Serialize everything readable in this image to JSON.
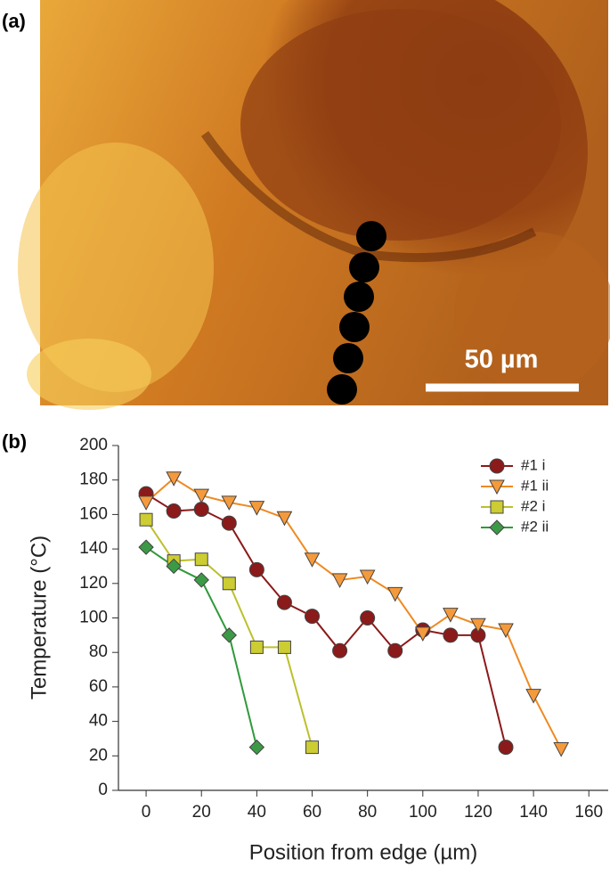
{
  "panel_a": {
    "label": "(a)",
    "scale_bar": "50 µm"
  },
  "panel_b": {
    "label": "(b)"
  },
  "chart_data": {
    "type": "line",
    "x_label": "Position from edge (µm)",
    "y_label": "Temperature (°C)",
    "xlim": [
      -10,
      167
    ],
    "xticks": [
      0,
      20,
      40,
      60,
      80,
      100,
      120,
      140,
      160
    ],
    "ylim": [
      0,
      200
    ],
    "yticks": [
      0,
      20,
      40,
      60,
      80,
      100,
      120,
      140,
      160,
      180,
      200
    ],
    "legend": "upper right",
    "series": [
      {
        "name": "#1 i",
        "color": "#8b1a1a",
        "line_color": "#8b1a1a",
        "marker": "circle",
        "x": [
          0,
          10,
          20,
          30,
          40,
          50,
          60,
          70,
          80,
          90,
          100,
          110,
          120,
          130
        ],
        "values": [
          172,
          162,
          163,
          155,
          128,
          109,
          101,
          81,
          100,
          81,
          93,
          90,
          90,
          25
        ]
      },
      {
        "name": "#1 ii",
        "color": "#f59a3c",
        "line_color": "#ee8a22",
        "marker": "triangle-down",
        "x": [
          0,
          10,
          20,
          30,
          40,
          50,
          60,
          70,
          80,
          90,
          100,
          110,
          120,
          130,
          140,
          150
        ],
        "values": [
          167,
          181,
          171,
          167,
          164,
          158,
          134,
          122,
          124,
          114,
          91,
          102,
          96,
          93,
          55,
          24
        ]
      },
      {
        "name": "#2 i",
        "color": "#cccc33",
        "line_color": "#bcc02c",
        "marker": "square",
        "x": [
          0,
          10,
          20,
          30,
          40,
          50,
          60
        ],
        "values": [
          157,
          133,
          134,
          120,
          83,
          83,
          25
        ]
      },
      {
        "name": "#2 ii",
        "color": "#3c9a46",
        "line_color": "#2f9a3a",
        "marker": "diamond",
        "x": [
          0,
          10,
          20,
          30,
          40
        ],
        "values": [
          141,
          130,
          122,
          90,
          25
        ]
      }
    ]
  }
}
